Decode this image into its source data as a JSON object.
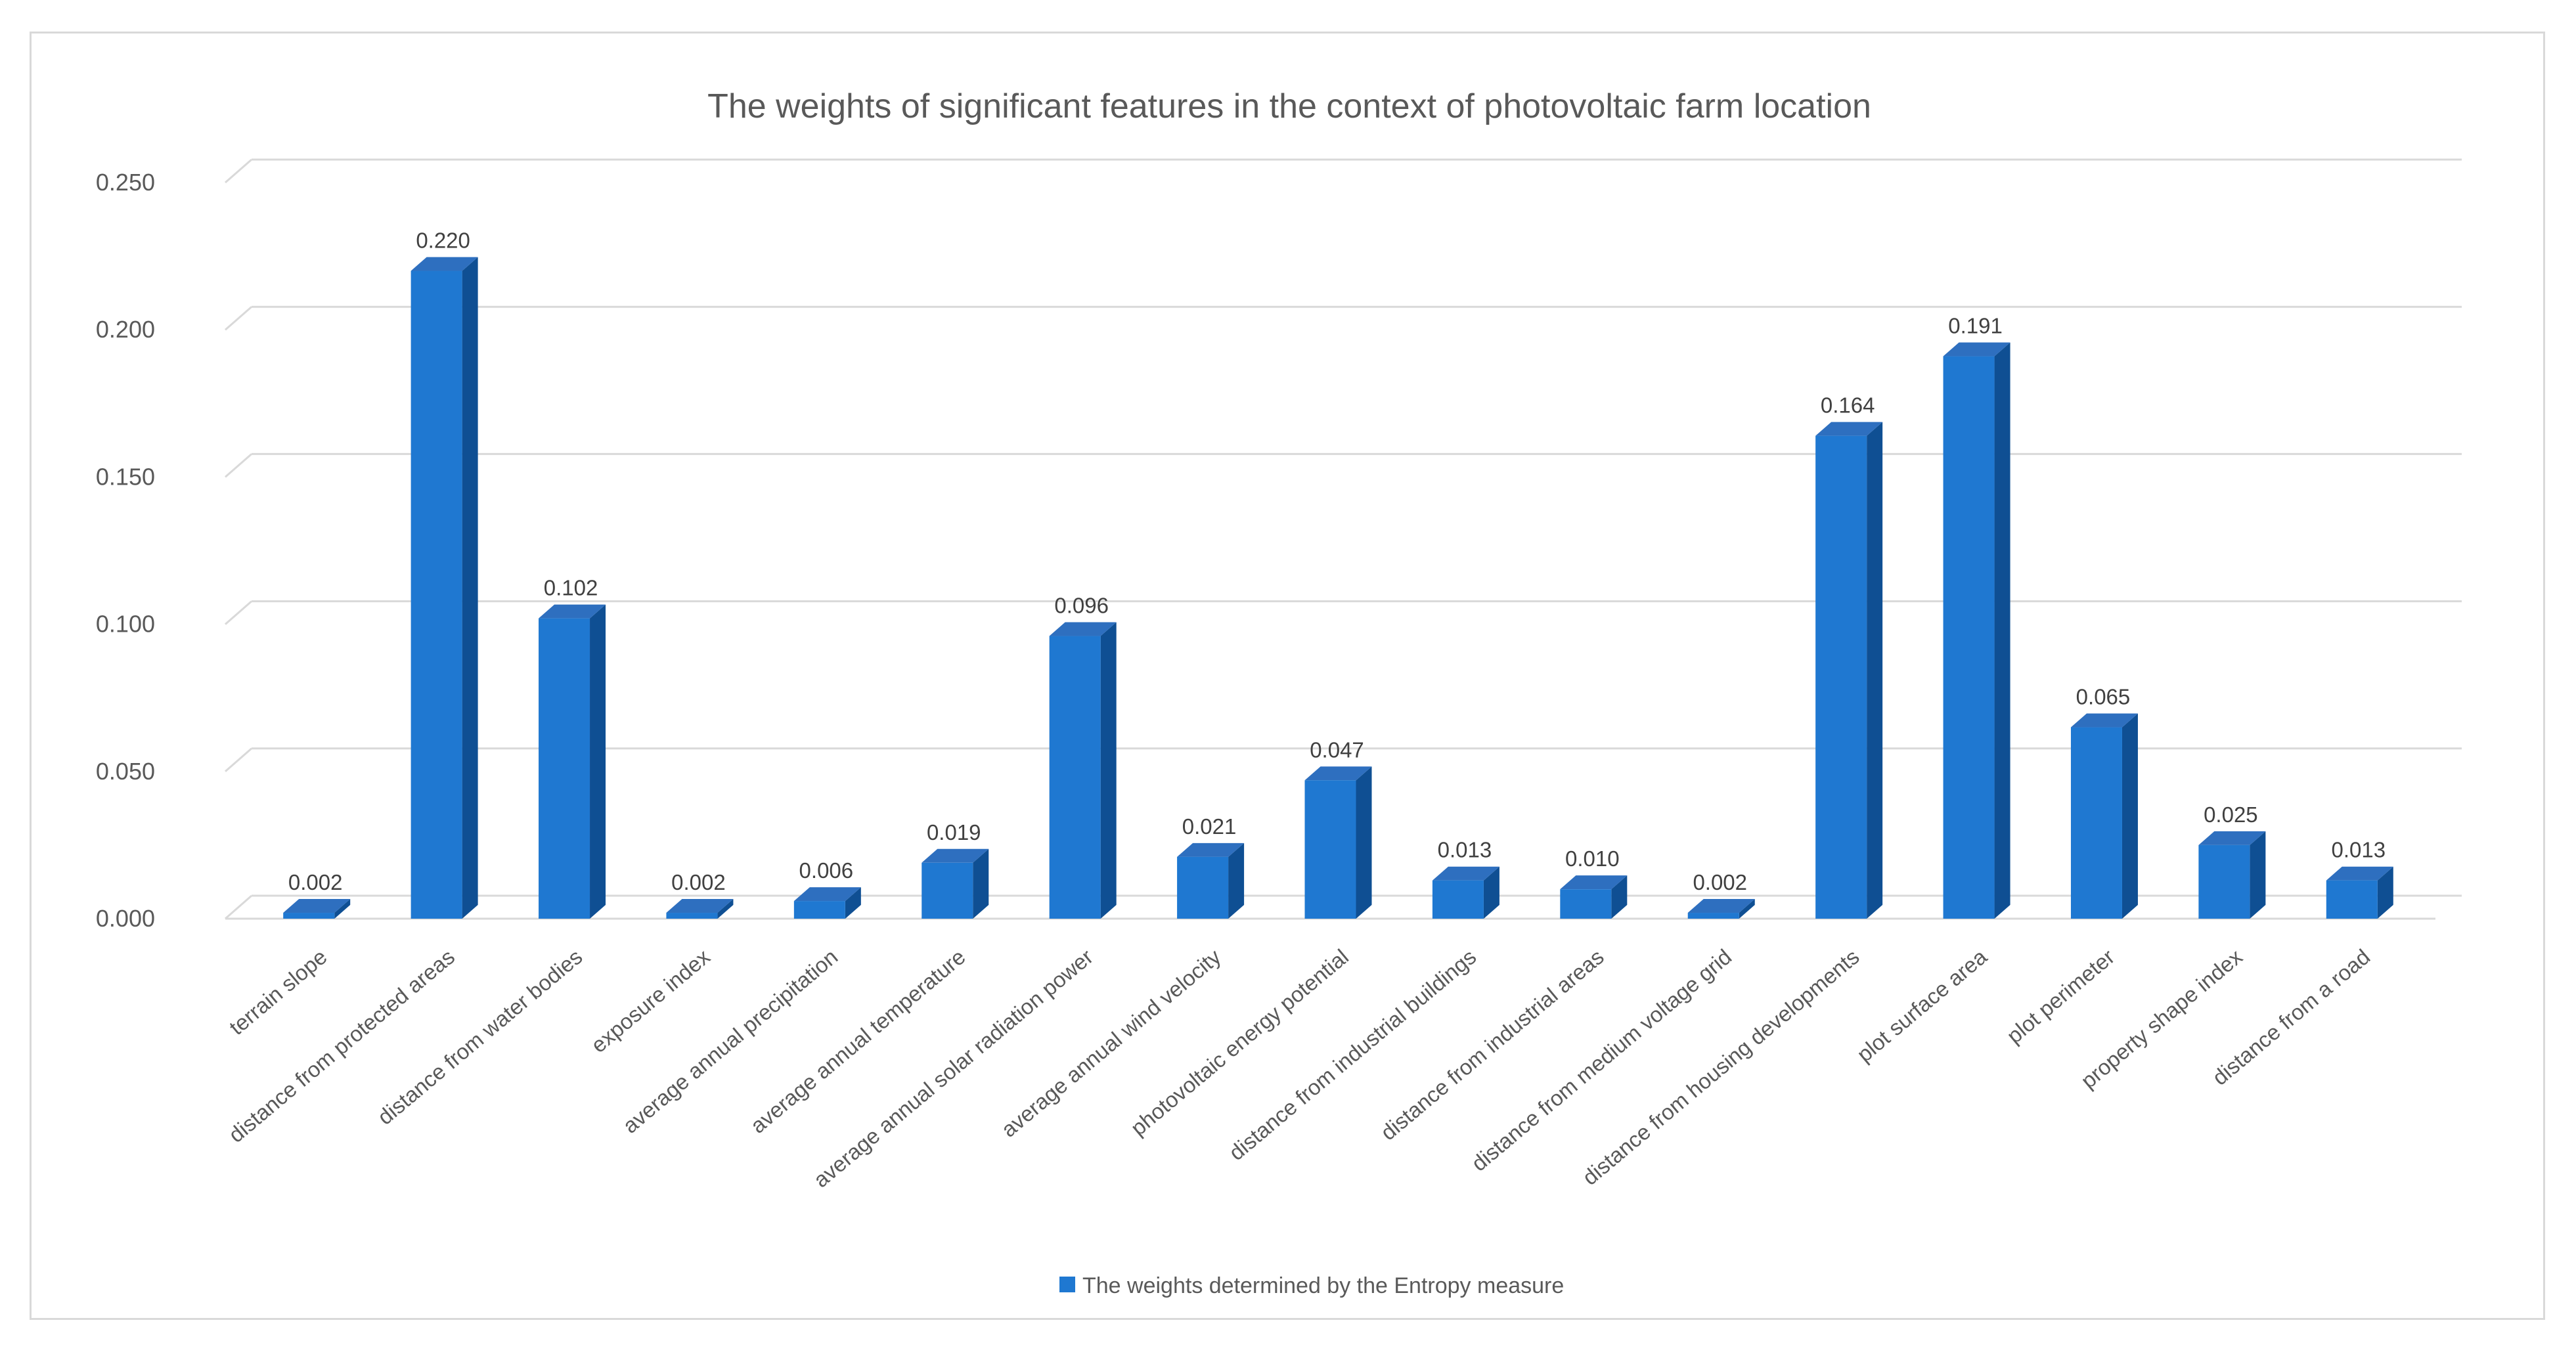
{
  "chart_data": {
    "type": "bar",
    "title": "The weights of significant features in the context of photovoltaic farm location",
    "xlabel": "",
    "ylabel": "",
    "ylim": [
      0,
      0.25
    ],
    "yticks": [
      "0.000",
      "0.050",
      "0.100",
      "0.150",
      "0.200",
      "0.250"
    ],
    "categories": [
      "terrain slope",
      "distance from protected areas",
      "distance from water bodies",
      "exposure index",
      "average annual precipitation",
      "average annual temperature",
      "average annual solar radiation power",
      "average annual wind velocity",
      "photovoltaic energy potential",
      "distance from industrial buildings",
      "distance from industrial areas",
      "distance from medium voltage grid",
      "distance from housing developments",
      "plot surface area",
      "plot perimeter",
      "property shape index",
      "distance from a road"
    ],
    "series": [
      {
        "name": "The weights determined by the Entropy measure",
        "values": [
          0.002,
          0.22,
          0.102,
          0.002,
          0.006,
          0.019,
          0.096,
          0.021,
          0.047,
          0.013,
          0.01,
          0.002,
          0.164,
          0.191,
          0.065,
          0.025,
          0.013
        ],
        "labels": [
          "0.002",
          "0.220",
          "0.102",
          "0.002",
          "0.006",
          "0.019",
          "0.096",
          "0.021",
          "0.047",
          "0.013",
          "0.010",
          "0.002",
          "0.164",
          "0.191",
          "0.065",
          "0.025",
          "0.013"
        ]
      }
    ],
    "grid": true,
    "legend": "bottom",
    "colors": {
      "bar_front": "#1f78d1",
      "bar_side": "#0f4f93",
      "bar_top": "#2e6fbf",
      "grid": "#d9d9d9",
      "text": "#595959"
    }
  }
}
